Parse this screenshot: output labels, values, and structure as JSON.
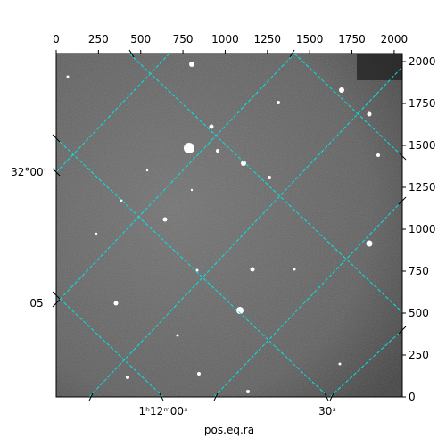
{
  "chart_data": {
    "type": "image",
    "xlabel": "pos.eq.ra",
    "xlim": [
      0,
      2048
    ],
    "xticks": [
      0,
      250,
      500,
      750,
      1000,
      1250,
      1500,
      1750,
      2000
    ],
    "ylim": [
      0,
      2048
    ],
    "yticks": [
      0,
      250,
      500,
      750,
      1000,
      1250,
      1500,
      1750,
      2000
    ],
    "ra_labels": [
      "1ʰ12ᵐ00ˢ",
      "30ˢ"
    ],
    "dec_labels": [
      "32°00'",
      "05'"
    ],
    "grid_color": "#00e5e5"
  }
}
